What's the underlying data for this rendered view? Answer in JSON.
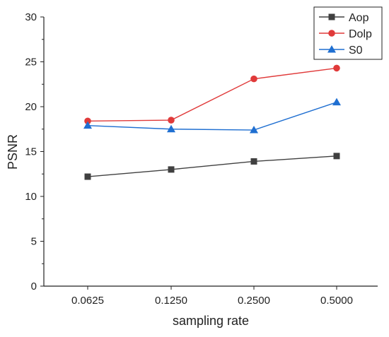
{
  "chart_data": {
    "type": "line",
    "title": "",
    "xlabel": "sampling rate",
    "ylabel": "PSNR",
    "categories": [
      "0.0625",
      "0.1250",
      "0.2500",
      "0.5000"
    ],
    "ylim": [
      0,
      30
    ],
    "yticks": [
      "0",
      "5",
      "10",
      "15",
      "20",
      "25",
      "30"
    ],
    "grid": false,
    "legend_position": "top-right",
    "series": [
      {
        "name": "Aop",
        "values": [
          12.2,
          13.0,
          13.9,
          14.5
        ],
        "color": "#404040",
        "marker": "square"
      },
      {
        "name": "Dolp",
        "values": [
          18.4,
          18.5,
          23.1,
          24.3
        ],
        "color": "#e03a3a",
        "marker": "circle"
      },
      {
        "name": "S0",
        "values": [
          17.9,
          17.5,
          17.4,
          20.5
        ],
        "color": "#1f6fd1",
        "marker": "triangle"
      }
    ]
  }
}
